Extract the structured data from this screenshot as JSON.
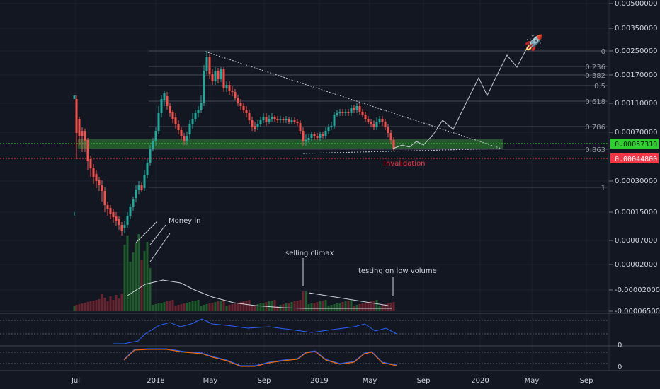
{
  "chart_data": {
    "type": "candlestick",
    "title": "",
    "y_scale": "log",
    "y_ticks": [
      "0.00500000",
      "0.00350000",
      "0.00250000",
      "0.00170000",
      "0.00110000",
      "0.00070000",
      "0.00030000",
      "0.00015000",
      "0.00007000",
      "0.00002000",
      "-0.00002000",
      "-0.00006500"
    ],
    "x_ticks": [
      "Jul",
      "2018",
      "May",
      "Sep",
      "2019",
      "May",
      "Sep",
      "2020",
      "May",
      "Sep"
    ],
    "price_tags": {
      "current": {
        "value": "0.00057310",
        "color": "#2fcf2f"
      },
      "invalidation": {
        "value": "0.00044800",
        "color": "#f23645"
      }
    },
    "fib_levels": [
      "0",
      "0.236",
      "0.382",
      "0.5",
      "0.618",
      "0.786",
      "0.863",
      "1"
    ],
    "annotations": {
      "money_in": "Money in",
      "selling_climax": "selling climax",
      "testing": "testing on low volume",
      "invalidation": "Invalidation",
      "rocket": "🚀"
    },
    "panes": {
      "indicator1_zero": "0",
      "indicator2_zero": "0"
    },
    "colors": {
      "up": "#26a69a",
      "down": "#ef5350",
      "bg": "#131722",
      "support": "#3bd43b",
      "trend": "#9aa0ab"
    }
  }
}
